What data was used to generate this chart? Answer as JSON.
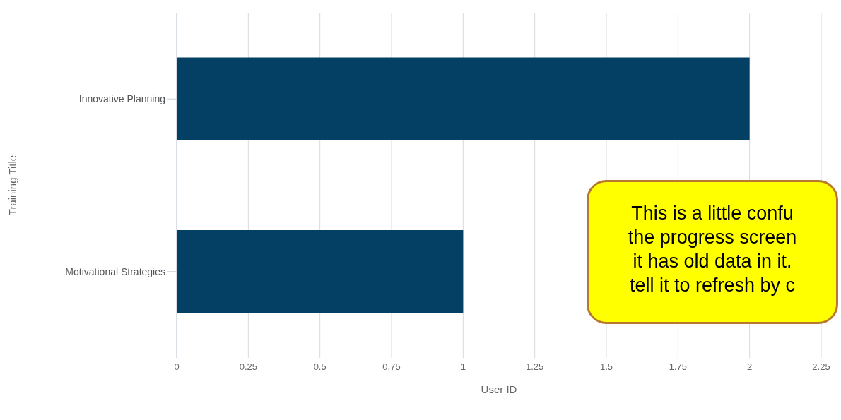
{
  "chart_data": {
    "type": "bar",
    "orientation": "horizontal",
    "categories": [
      "Innovative Planning",
      "Motivational Strategies"
    ],
    "values": [
      2,
      1
    ],
    "color": "#034063",
    "xlabel": "User ID",
    "ylabel": "Training Title",
    "xlim": [
      0,
      2.25
    ],
    "xticks": [
      0,
      0.25,
      0.5,
      0.75,
      1,
      1.25,
      1.5,
      1.75,
      2,
      2.25
    ],
    "grid": "x",
    "annotations": [
      "This is a little confu\nthe progress screen\nit has old data in it.\ntell it to refresh by c"
    ]
  }
}
